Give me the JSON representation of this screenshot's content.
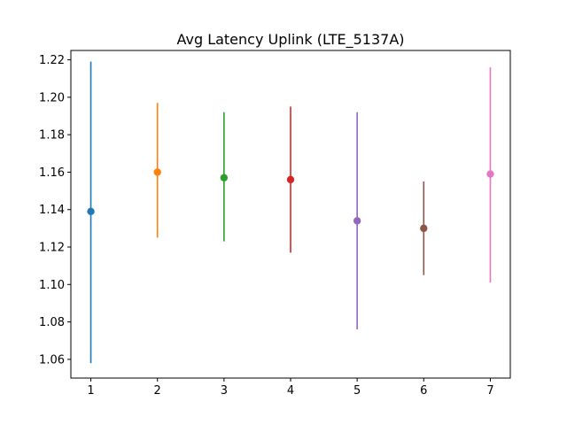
{
  "chart_data": {
    "type": "errorbar",
    "title": "Avg Latency Uplink (LTE_5137A)",
    "xlabel": "",
    "ylabel": "",
    "xlim": [
      0.7,
      7.3
    ],
    "ylim": [
      1.05,
      1.225
    ],
    "x_ticks": [
      "1",
      "2",
      "3",
      "4",
      "5",
      "6",
      "7"
    ],
    "y_ticks": [
      "1.06",
      "1.08",
      "1.10",
      "1.12",
      "1.14",
      "1.16",
      "1.18",
      "1.20",
      "1.22"
    ],
    "grid": false,
    "legend": "none",
    "points": [
      {
        "x": 1,
        "y": 1.139,
        "low": 1.058,
        "high": 1.219,
        "color": "#1f77b4"
      },
      {
        "x": 2,
        "y": 1.16,
        "low": 1.125,
        "high": 1.197,
        "color": "#ff7f0e"
      },
      {
        "x": 3,
        "y": 1.157,
        "low": 1.123,
        "high": 1.192,
        "color": "#2ca02c"
      },
      {
        "x": 4,
        "y": 1.156,
        "low": 1.117,
        "high": 1.195,
        "color": "#d62728"
      },
      {
        "x": 5,
        "y": 1.134,
        "low": 1.076,
        "high": 1.192,
        "color": "#9467bd"
      },
      {
        "x": 6,
        "y": 1.13,
        "low": 1.105,
        "high": 1.155,
        "color": "#8c564b"
      },
      {
        "x": 7,
        "y": 1.159,
        "low": 1.101,
        "high": 1.216,
        "color": "#e377c2"
      }
    ]
  }
}
